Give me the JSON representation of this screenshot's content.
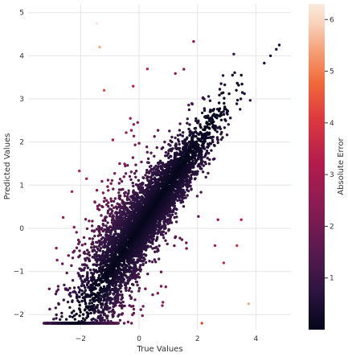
{
  "chart_data": {
    "type": "scatter",
    "title": "",
    "xlabel": "True Values",
    "ylabel": "Predicted Values",
    "xlim": [
      -3.8,
      5.2
    ],
    "ylim": [
      -2.35,
      5.2
    ],
    "x_ticks": [
      -2,
      0,
      2,
      4
    ],
    "y_ticks": [
      -2,
      -1,
      0,
      1,
      2,
      3,
      4,
      5
    ],
    "grid": true,
    "colorbar": {
      "label": "Absolute Error",
      "range": [
        0,
        6.3
      ],
      "ticks": [
        1,
        2,
        3,
        4,
        5,
        6
      ],
      "colormap": [
        "#03051a",
        "#2d1540",
        "#5c1a4f",
        "#8a1b53",
        "#b51d4c",
        "#dd3a3f",
        "#f06a3a",
        "#f5a27a",
        "#f9d2bd",
        "#faebdd"
      ]
    },
    "series_summary": {
      "n_points_approx": 6000,
      "trend": "predicted increases roughly linearly with true value; dense cloud along y≈x, wider spread for true values below 0; predictions clipped near -2.2",
      "dense_core_x_range": [
        -3.0,
        4.9
      ],
      "floor_value": -2.2
    },
    "points": [
      {
        "x": -1.45,
        "y": 4.75,
        "error": 6.2
      },
      {
        "x": -1.35,
        "y": 4.2,
        "error": 5.5
      },
      {
        "x": -1.2,
        "y": 3.2,
        "error": 4.4
      },
      {
        "x": 3.75,
        "y": -1.75,
        "error": 5.5
      },
      {
        "x": 2.15,
        "y": -2.2,
        "error": 4.3
      },
      {
        "x": 3.35,
        "y": -0.4,
        "error": 3.75
      },
      {
        "x": 3.5,
        "y": 0.2,
        "error": 3.3
      },
      {
        "x": 2.9,
        "y": -0.8,
        "error": 3.7
      },
      {
        "x": 2.6,
        "y": -0.4,
        "error": 3.0
      },
      {
        "x": 2.7,
        "y": 0.2,
        "error": 2.5
      },
      {
        "x": -0.3,
        "y": 2.55,
        "error": 2.9
      },
      {
        "x": -0.9,
        "y": 2.05,
        "error": 2.9
      },
      {
        "x": -1.8,
        "y": 1.15,
        "error": 2.9
      },
      {
        "x": -2.3,
        "y": 0.85,
        "error": 3.1
      },
      {
        "x": -2.6,
        "y": 0.25,
        "error": 2.85
      },
      {
        "x": 4.8,
        "y": 4.25,
        "error": 0.5
      },
      {
        "x": 4.7,
        "y": 4.15,
        "error": 0.5
      },
      {
        "x": 4.5,
        "y": 4.0,
        "error": 0.5
      },
      {
        "x": 3.5,
        "y": 3.55,
        "error": 0.05
      },
      {
        "x": 3.2,
        "y": 3.55,
        "error": 0.35
      }
    ]
  }
}
